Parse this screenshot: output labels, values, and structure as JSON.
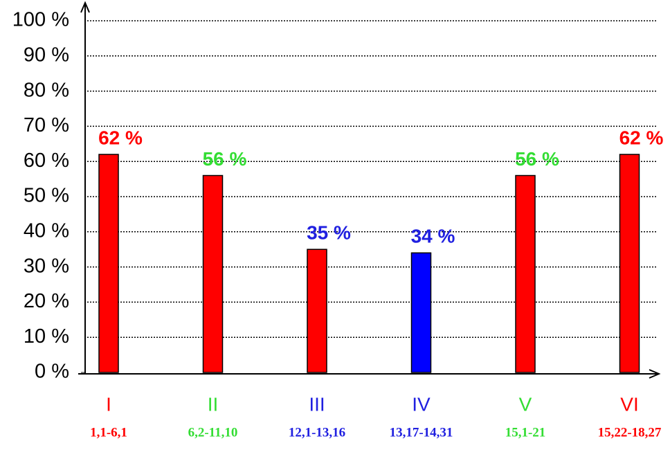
{
  "chart_data": {
    "type": "bar",
    "categories": [
      "I",
      "II",
      "III",
      "IV",
      "V",
      "VI"
    ],
    "category_sublabels": [
      "1,1-6,1",
      "6,2-11,10",
      "12,1-13,16",
      "13,17-14,31",
      "15,1-21",
      "15,22-18,27"
    ],
    "values": [
      62,
      56,
      35,
      34,
      56,
      62
    ],
    "value_labels": [
      "62 %",
      "56 %",
      "35 %",
      "34 %",
      "56 %",
      "62 %"
    ],
    "colors": [
      "#ff0000",
      "#ff0000",
      "#ff0000",
      "#0000ff",
      "#ff0000",
      "#ff0000"
    ],
    "label_colors": [
      "#ff0000",
      "#33dd33",
      "#2020e0",
      "#2020e0",
      "#33dd33",
      "#ff0000"
    ],
    "ylim": [
      0,
      100
    ],
    "yticks": [
      {
        "value": 0,
        "label": "0 %"
      },
      {
        "value": 10,
        "label": "10 %"
      },
      {
        "value": 20,
        "label": "20 %"
      },
      {
        "value": 30,
        "label": "30 %"
      },
      {
        "value": 40,
        "label": "40 %"
      },
      {
        "value": 50,
        "label": "50 %"
      },
      {
        "value": 60,
        "label": "60 %"
      },
      {
        "value": 70,
        "label": "70 %"
      },
      {
        "value": 80,
        "label": "80 %"
      },
      {
        "value": 90,
        "label": "90 %"
      },
      {
        "value": 100,
        "label": "100 %"
      }
    ],
    "grid": true
  }
}
